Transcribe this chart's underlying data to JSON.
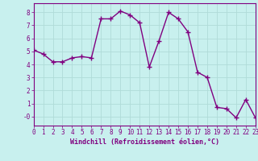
{
  "x": [
    0,
    1,
    2,
    3,
    4,
    5,
    6,
    7,
    8,
    9,
    10,
    11,
    12,
    13,
    14,
    15,
    16,
    17,
    18,
    19,
    20,
    21,
    22,
    23
  ],
  "y": [
    5.1,
    4.8,
    4.2,
    4.2,
    4.5,
    4.6,
    4.5,
    7.5,
    7.5,
    8.1,
    7.8,
    7.2,
    3.8,
    5.8,
    8.0,
    7.5,
    6.5,
    3.4,
    3.0,
    0.7,
    0.6,
    -0.1,
    1.3,
    -0.1
  ],
  "line_color": "#800080",
  "marker": "+",
  "marker_size": 4,
  "marker_lw": 1.0,
  "bg_color": "#c8f0ee",
  "grid_color": "#b0dbd8",
  "xlabel": "Windchill (Refroidissement éolien,°C)",
  "xlim": [
    0,
    23
  ],
  "ylim": [
    -0.7,
    8.7
  ],
  "ytick_vals": [
    0,
    1,
    2,
    3,
    4,
    5,
    6,
    7,
    8
  ],
  "ytick_labels": [
    "-0",
    "1",
    "2",
    "3",
    "4",
    "5",
    "6",
    "7",
    "8"
  ],
  "xticks": [
    0,
    1,
    2,
    3,
    4,
    5,
    6,
    7,
    8,
    9,
    10,
    11,
    12,
    13,
    14,
    15,
    16,
    17,
    18,
    19,
    20,
    21,
    22,
    23
  ],
  "tick_color": "#800080",
  "label_color": "#800080",
  "xlabel_fontsize": 6.0,
  "tick_fontsize": 5.5,
  "line_width": 1.0,
  "spine_color": "#800080"
}
